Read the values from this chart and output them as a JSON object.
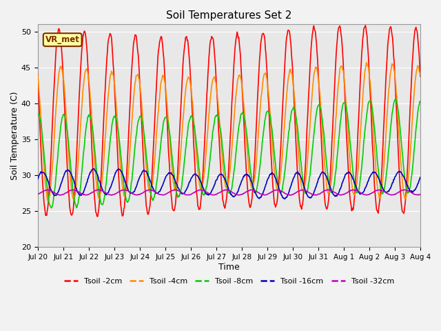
{
  "title": "Soil Temperatures Set 2",
  "xlabel": "Time",
  "ylabel": "Soil Temperature (C)",
  "ylim": [
    20,
    51
  ],
  "xlim": [
    0,
    15
  ],
  "yticks": [
    20,
    25,
    30,
    35,
    40,
    45,
    50
  ],
  "xtick_labels": [
    "Jul 20",
    "Jul 21",
    "Jul 22",
    "Jul 23",
    "Jul 24",
    "Jul 25",
    "Jul 26",
    "Jul 27",
    "Jul 28",
    "Jul 29",
    "Jul 30",
    "Jul 31",
    "Aug 1",
    "Aug 2",
    "Aug 3",
    "Aug 4"
  ],
  "xtick_positions": [
    0,
    1,
    2,
    3,
    4,
    5,
    6,
    7,
    8,
    9,
    10,
    11,
    12,
    13,
    14,
    15
  ],
  "annotation": "VR_met",
  "bg_color": "#e8e8e8",
  "grid_color": "#ffffff",
  "line_colors": {
    "2cm": "#ff0000",
    "4cm": "#ff8c00",
    "8cm": "#00cc00",
    "16cm": "#0000bb",
    "32cm": "#bb00bb"
  },
  "lw": 1.2,
  "n_days": 15,
  "pts_per_day": 48
}
